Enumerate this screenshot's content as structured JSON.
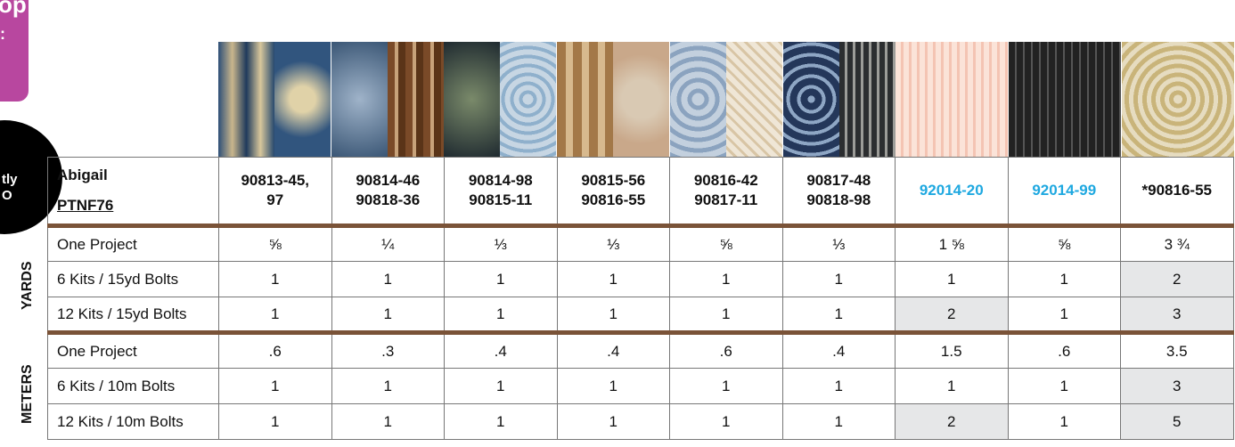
{
  "promo": {
    "line1": "op",
    "line2": ":"
  },
  "badge": {
    "line1": "tly",
    "line2": "O"
  },
  "side_labels": {
    "yards": "YARDS",
    "meters": "METERS"
  },
  "colors": {
    "accent_blue": "#1ea8e0",
    "divider_brown": "#7a5338",
    "highlight_grey": "#e6e7e8",
    "promo_magenta": "#b8479f"
  },
  "header": {
    "name": "Abigail",
    "code": "PTNF76",
    "columns": [
      {
        "line1": "90813-45,",
        "line2": "97",
        "color": "black"
      },
      {
        "line1": "90814-46",
        "line2": "90818-36",
        "color": "black"
      },
      {
        "line1": "90814-98",
        "line2": "90815-11",
        "color": "black"
      },
      {
        "line1": "90815-56",
        "line2": "90816-55",
        "color": "black"
      },
      {
        "line1": "90816-42",
        "line2": "90817-11",
        "color": "black"
      },
      {
        "line1": "90817-48",
        "line2": "90818-98",
        "color": "black"
      },
      {
        "line1": "92014-20",
        "line2": "",
        "color": "blue"
      },
      {
        "line1": "92014-99",
        "line2": "",
        "color": "blue"
      },
      {
        "line1": "*90816-55",
        "line2": "",
        "color": "black"
      }
    ]
  },
  "rows": [
    {
      "label": "One Project",
      "values": [
        "⅝",
        "¼",
        "⅓",
        "⅓",
        "⅝",
        "⅓",
        "1 ⅝",
        "⅝",
        "3 ¾"
      ],
      "grey": []
    },
    {
      "label": "6 Kits / 15yd Bolts",
      "values": [
        "1",
        "1",
        "1",
        "1",
        "1",
        "1",
        "1",
        "1",
        "2"
      ],
      "grey": [
        8
      ]
    },
    {
      "label": "12 Kits / 15yd Bolts",
      "values": [
        "1",
        "1",
        "1",
        "1",
        "1",
        "1",
        "2",
        "1",
        "3"
      ],
      "grey": [
        6,
        8
      ]
    },
    {
      "label": "One Project",
      "values": [
        ".6",
        ".3",
        ".4",
        ".4",
        ".6",
        ".4",
        "1.5",
        ".6",
        "3.5"
      ],
      "grey": []
    },
    {
      "label": "6 Kits / 10m Bolts",
      "values": [
        "1",
        "1",
        "1",
        "1",
        "1",
        "1",
        "1",
        "1",
        "3"
      ],
      "grey": [
        8
      ]
    },
    {
      "label": "12 Kits / 10m Bolts",
      "values": [
        "1",
        "1",
        "1",
        "1",
        "1",
        "1",
        "2",
        "1",
        "5"
      ],
      "grey": [
        6,
        8
      ]
    }
  ]
}
